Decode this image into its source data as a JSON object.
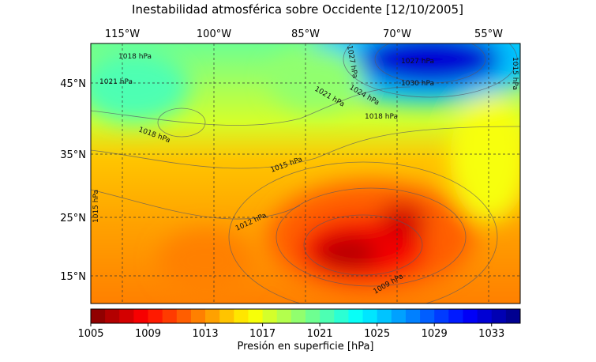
{
  "title": "Inestabilidad atmosférica sobre Occidente [12/10/2005]",
  "longitude_labels": [
    "115°W",
    "100°W",
    "85°W",
    "70°W",
    "55°W"
  ],
  "latitude_labels": [
    "45°N",
    "35°N",
    "25°N",
    "15°N"
  ],
  "contour_labels": [
    "1018 hPa",
    "1021 hPa",
    "1018 hPa",
    "1015 hPa",
    "1012 hPa",
    "1009 hPa",
    "1015 hPa",
    "1021 hPa",
    "1024 hPa",
    "1018 hPa",
    "1027 hPa",
    "1030 hPa",
    "1015 hPa",
    "1027 hPa"
  ],
  "colorbar": {
    "label": "Presión en superficie [hPa]",
    "range": [
      1005,
      1035
    ],
    "ticks": [
      1005,
      1009,
      1013,
      1017,
      1021,
      1025,
      1029,
      1033
    ],
    "colors": [
      "#910000",
      "#b30000",
      "#d40000",
      "#f70000",
      "#ff1a00",
      "#ff3b00",
      "#ff5e00",
      "#ff8000",
      "#ffa100",
      "#ffc400",
      "#ffe600",
      "#f7ff08",
      "#d4ff2b",
      "#b3ff4d",
      "#91ff6e",
      "#6eff91",
      "#4dffb3",
      "#2bffd4",
      "#08fff7",
      "#00e6ff",
      "#00c4ff",
      "#00a1ff",
      "#0080ff",
      "#005eff",
      "#003bff",
      "#001aff",
      "#0000f7",
      "#0000d4",
      "#0000b3",
      "#000091"
    ]
  }
}
